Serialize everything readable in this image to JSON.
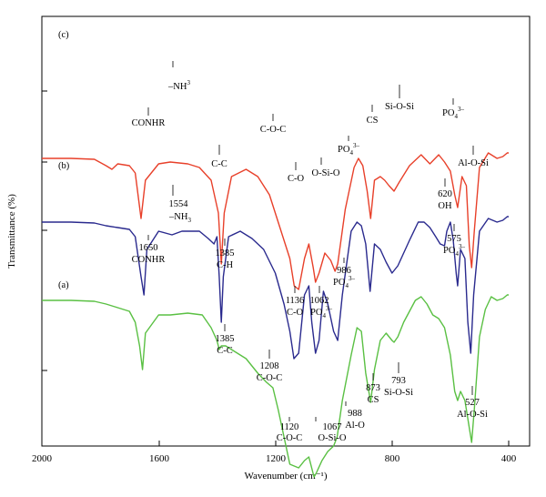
{
  "chart_data": {
    "type": "line",
    "title": "",
    "xlabel": "Wavenumber (cm⁻¹)",
    "ylabel": "Transmittance (%)",
    "xlim": [
      2000,
      400
    ],
    "x_reversed": true,
    "x_ticks": [
      "2000",
      "1600",
      "1200",
      "800",
      "400"
    ],
    "y_tick_labels": "none",
    "grid": false,
    "series": [
      {
        "name": "(c)",
        "color": "#e8402a",
        "offset": 0.78,
        "points": [
          [
            2000,
            0.0
          ],
          [
            1900,
            0.0
          ],
          [
            1820,
            -0.005
          ],
          [
            1780,
            -0.04
          ],
          [
            1760,
            -0.06
          ],
          [
            1740,
            -0.03
          ],
          [
            1700,
            -0.04
          ],
          [
            1680,
            -0.08
          ],
          [
            1660,
            -0.33
          ],
          [
            1645,
            -0.12
          ],
          [
            1600,
            -0.03
          ],
          [
            1560,
            -0.02
          ],
          [
            1500,
            -0.03
          ],
          [
            1460,
            -0.05
          ],
          [
            1420,
            -0.12
          ],
          [
            1395,
            -0.3
          ],
          [
            1385,
            -0.58
          ],
          [
            1375,
            -0.3
          ],
          [
            1350,
            -0.1
          ],
          [
            1300,
            -0.06
          ],
          [
            1260,
            -0.1
          ],
          [
            1220,
            -0.2
          ],
          [
            1180,
            -0.4
          ],
          [
            1150,
            -0.55
          ],
          [
            1135,
            -0.7
          ],
          [
            1120,
            -0.72
          ],
          [
            1100,
            -0.55
          ],
          [
            1085,
            -0.47
          ],
          [
            1070,
            -0.6
          ],
          [
            1062,
            -0.68
          ],
          [
            1050,
            -0.63
          ],
          [
            1030,
            -0.52
          ],
          [
            1010,
            -0.56
          ],
          [
            995,
            -0.62
          ],
          [
            986,
            -0.58
          ],
          [
            960,
            -0.28
          ],
          [
            930,
            -0.05
          ],
          [
            915,
            0.0
          ],
          [
            900,
            -0.04
          ],
          [
            885,
            -0.18
          ],
          [
            873,
            -0.33
          ],
          [
            860,
            -0.12
          ],
          [
            840,
            -0.1
          ],
          [
            825,
            -0.12
          ],
          [
            810,
            -0.15
          ],
          [
            793,
            -0.18
          ],
          [
            775,
            -0.13
          ],
          [
            740,
            -0.04
          ],
          [
            700,
            0.02
          ],
          [
            670,
            -0.03
          ],
          [
            640,
            0.02
          ],
          [
            620,
            -0.02
          ],
          [
            600,
            -0.07
          ],
          [
            585,
            -0.2
          ],
          [
            575,
            -0.27
          ],
          [
            560,
            -0.1
          ],
          [
            545,
            -0.15
          ],
          [
            535,
            -0.48
          ],
          [
            527,
            -0.6
          ],
          [
            518,
            -0.4
          ],
          [
            500,
            -0.05
          ],
          [
            470,
            0.03
          ],
          [
            440,
            0.0
          ],
          [
            420,
            0.01
          ],
          [
            405,
            0.03
          ],
          [
            400,
            0.03
          ]
        ]
      },
      {
        "name": "(b)",
        "color": "#2a2a8e",
        "offset": 0.43,
        "points": [
          [
            2000,
            0.0
          ],
          [
            1900,
            0.0
          ],
          [
            1820,
            -0.005
          ],
          [
            1780,
            -0.02
          ],
          [
            1740,
            -0.03
          ],
          [
            1700,
            -0.04
          ],
          [
            1680,
            -0.08
          ],
          [
            1660,
            -0.3
          ],
          [
            1650,
            -0.4
          ],
          [
            1640,
            -0.15
          ],
          [
            1600,
            -0.05
          ],
          [
            1554,
            -0.07
          ],
          [
            1520,
            -0.05
          ],
          [
            1460,
            -0.05
          ],
          [
            1430,
            -0.09
          ],
          [
            1410,
            -0.12
          ],
          [
            1400,
            -0.08
          ],
          [
            1392,
            -0.3
          ],
          [
            1385,
            -0.55
          ],
          [
            1378,
            -0.3
          ],
          [
            1360,
            -0.08
          ],
          [
            1320,
            -0.05
          ],
          [
            1280,
            -0.09
          ],
          [
            1240,
            -0.15
          ],
          [
            1200,
            -0.28
          ],
          [
            1170,
            -0.45
          ],
          [
            1150,
            -0.6
          ],
          [
            1136,
            -0.75
          ],
          [
            1120,
            -0.72
          ],
          [
            1100,
            -0.4
          ],
          [
            1085,
            -0.35
          ],
          [
            1075,
            -0.55
          ],
          [
            1062,
            -0.72
          ],
          [
            1050,
            -0.65
          ],
          [
            1035,
            -0.38
          ],
          [
            1020,
            -0.45
          ],
          [
            1000,
            -0.6
          ],
          [
            986,
            -0.65
          ],
          [
            970,
            -0.4
          ],
          [
            940,
            -0.05
          ],
          [
            920,
            0.0
          ],
          [
            905,
            -0.02
          ],
          [
            890,
            -0.12
          ],
          [
            875,
            -0.38
          ],
          [
            860,
            -0.12
          ],
          [
            840,
            -0.15
          ],
          [
            820,
            -0.22
          ],
          [
            800,
            -0.28
          ],
          [
            780,
            -0.24
          ],
          [
            740,
            -0.1
          ],
          [
            710,
            0.0
          ],
          [
            690,
            0.0
          ],
          [
            670,
            -0.03
          ],
          [
            650,
            -0.08
          ],
          [
            635,
            -0.12
          ],
          [
            620,
            -0.13
          ],
          [
            612,
            -0.05
          ],
          [
            600,
            0.0
          ],
          [
            590,
            -0.1
          ],
          [
            580,
            -0.28
          ],
          [
            575,
            -0.35
          ],
          [
            565,
            -0.15
          ],
          [
            550,
            -0.2
          ],
          [
            540,
            -0.55
          ],
          [
            530,
            -0.72
          ],
          [
            520,
            -0.4
          ],
          [
            500,
            -0.05
          ],
          [
            470,
            0.02
          ],
          [
            440,
            0.0
          ],
          [
            420,
            0.01
          ],
          [
            405,
            0.03
          ],
          [
            400,
            0.03
          ]
        ]
      },
      {
        "name": "(a)",
        "color": "#5ac043",
        "offset": 0.0,
        "points": [
          [
            2000,
            0.0
          ],
          [
            1900,
            0.0
          ],
          [
            1820,
            -0.005
          ],
          [
            1780,
            -0.02
          ],
          [
            1740,
            -0.04
          ],
          [
            1700,
            -0.06
          ],
          [
            1680,
            -0.12
          ],
          [
            1665,
            -0.25
          ],
          [
            1655,
            -0.38
          ],
          [
            1645,
            -0.18
          ],
          [
            1600,
            -0.08
          ],
          [
            1560,
            -0.08
          ],
          [
            1500,
            -0.07
          ],
          [
            1450,
            -0.08
          ],
          [
            1420,
            -0.15
          ],
          [
            1400,
            -0.22
          ],
          [
            1392,
            -0.27
          ],
          [
            1385,
            -0.25
          ],
          [
            1370,
            -0.25
          ],
          [
            1340,
            -0.28
          ],
          [
            1300,
            -0.32
          ],
          [
            1260,
            -0.4
          ],
          [
            1230,
            -0.45
          ],
          [
            1208,
            -0.48
          ],
          [
            1190,
            -0.6
          ],
          [
            1170,
            -0.75
          ],
          [
            1150,
            -0.9
          ],
          [
            1120,
            -0.92
          ],
          [
            1100,
            -0.88
          ],
          [
            1085,
            -0.86
          ],
          [
            1067,
            -0.97
          ],
          [
            1060,
            -0.95
          ],
          [
            1040,
            -0.88
          ],
          [
            1020,
            -0.83
          ],
          [
            1000,
            -0.8
          ],
          [
            988,
            -0.75
          ],
          [
            970,
            -0.55
          ],
          [
            940,
            -0.3
          ],
          [
            920,
            -0.15
          ],
          [
            905,
            -0.17
          ],
          [
            890,
            -0.4
          ],
          [
            873,
            -0.56
          ],
          [
            860,
            -0.38
          ],
          [
            840,
            -0.22
          ],
          [
            820,
            -0.18
          ],
          [
            800,
            -0.22
          ],
          [
            793,
            -0.23
          ],
          [
            780,
            -0.2
          ],
          [
            760,
            -0.12
          ],
          [
            740,
            -0.06
          ],
          [
            720,
            0.0
          ],
          [
            700,
            0.02
          ],
          [
            680,
            -0.02
          ],
          [
            660,
            -0.08
          ],
          [
            640,
            -0.1
          ],
          [
            620,
            -0.15
          ],
          [
            600,
            -0.3
          ],
          [
            585,
            -0.5
          ],
          [
            575,
            -0.55
          ],
          [
            565,
            -0.5
          ],
          [
            550,
            -0.55
          ],
          [
            535,
            -0.7
          ],
          [
            527,
            -0.78
          ],
          [
            518,
            -0.6
          ],
          [
            500,
            -0.2
          ],
          [
            480,
            -0.05
          ],
          [
            460,
            0.02
          ],
          [
            440,
            0.0
          ],
          [
            420,
            0.01
          ],
          [
            405,
            0.03
          ],
          [
            400,
            0.03
          ]
        ]
      }
    ],
    "annotations": [
      {
        "text": "(c)"
      },
      {
        "text": "(b)"
      },
      {
        "text": "(a)"
      },
      {
        "text": "CONHR"
      },
      {
        "text": "–NH",
        "sup": "3"
      },
      {
        "text": "C-C"
      },
      {
        "text": "C-O-C"
      },
      {
        "text": "C-O"
      },
      {
        "text": "O-Si-O"
      },
      {
        "text": "PO",
        "sub": "4",
        "sup": "3–"
      },
      {
        "text": "CS"
      },
      {
        "text": "Si-O-Si"
      },
      {
        "text": "PO",
        "sub": "4",
        "sup": "3–"
      },
      {
        "text": "Al-O-Si"
      },
      {
        "text": "1650"
      },
      {
        "text": "CONHR"
      },
      {
        "text": "1554"
      },
      {
        "text": "–NH",
        "sub": "3"
      },
      {
        "text": "1385"
      },
      {
        "text": "C-H"
      },
      {
        "text": "1136"
      },
      {
        "text": "C-O"
      },
      {
        "text": "1062"
      },
      {
        "text": "PO",
        "sub": "4",
        "sup": "3–"
      },
      {
        "text": "986"
      },
      {
        "text": "PO",
        "sub": "4",
        "sup": "3–"
      },
      {
        "text": "620"
      },
      {
        "text": "OH"
      },
      {
        "text": "575"
      },
      {
        "text": "PO",
        "sub": "4",
        "sup": "3–"
      },
      {
        "text": "1385"
      },
      {
        "text": "C-C"
      },
      {
        "text": "1208"
      },
      {
        "text": "C-O-C"
      },
      {
        "text": "873"
      },
      {
        "text": "CS"
      },
      {
        "text": "793"
      },
      {
        "text": "Si-O-Si"
      },
      {
        "text": "988"
      },
      {
        "text": "Al-O"
      },
      {
        "text": "527"
      },
      {
        "text": "Al-O-Si"
      },
      {
        "text": "1120"
      },
      {
        "text": "C-O-C"
      },
      {
        "text": "1067"
      },
      {
        "text": "O-Si-O"
      }
    ]
  }
}
